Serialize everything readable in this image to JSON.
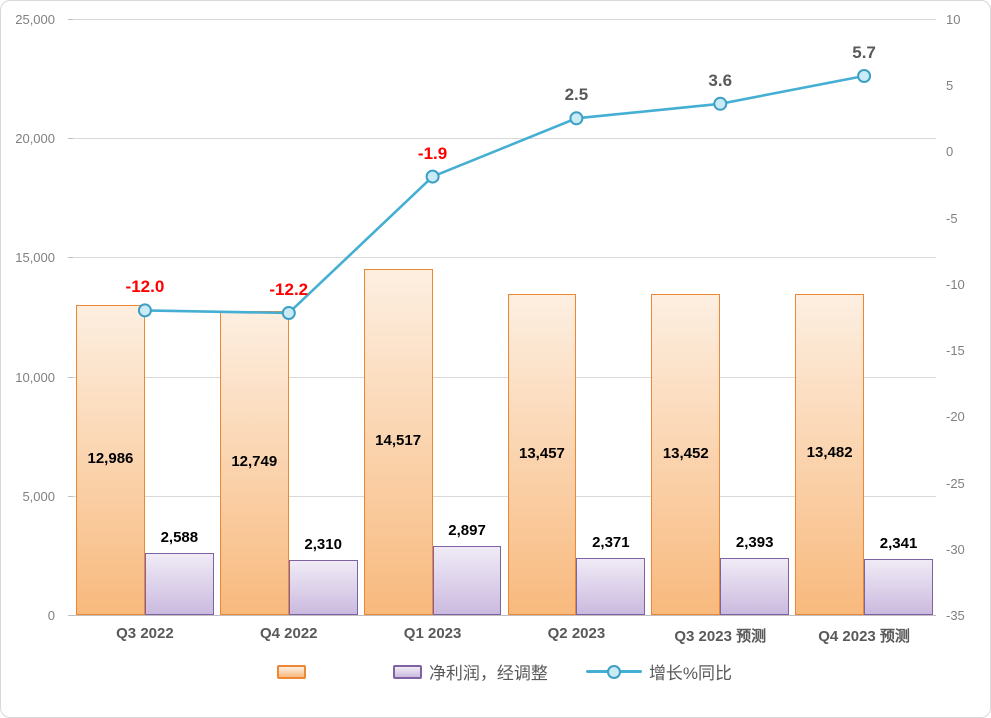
{
  "chart_data": {
    "type": "combo-bar-line",
    "categories": [
      "Q3 2022",
      "Q4 2022",
      "Q1 2023",
      "Q2 2023",
      "Q3 2023 预测",
      "Q4 2023 预测"
    ],
    "series": [
      {
        "name": "",
        "type": "bar",
        "axis": "left",
        "values": [
          12986,
          12749,
          14517,
          13457,
          13452,
          13482
        ],
        "labels": [
          "12,986",
          "12,749",
          "14,517",
          "13,457",
          "13,452",
          "13,482"
        ],
        "fill_top": "#FDEFE1",
        "fill_bottom": "#F8B97D",
        "border": "#ED8733"
      },
      {
        "name": "净利润，经调整",
        "type": "bar",
        "axis": "left",
        "values": [
          2588,
          2310,
          2897,
          2371,
          2393,
          2341
        ],
        "labels": [
          "2,588",
          "2,310",
          "2,897",
          "2,371",
          "2,393",
          "2,341"
        ],
        "fill_top": "#F0EBF6",
        "fill_bottom": "#CBBADF",
        "border": "#7E62A1"
      },
      {
        "name": "增长%同比",
        "type": "line",
        "axis": "right",
        "values": [
          -12.0,
          -12.2,
          -1.9,
          2.5,
          3.6,
          5.7
        ],
        "labels": [
          "-12.0",
          "-12.2",
          "-1.9",
          "2.5",
          "3.6",
          "5.7"
        ],
        "color": "#45AFD3",
        "marker_fill": "#C9EBF5",
        "marker_border": "#3E9FC4",
        "label_color_positive": "#595959",
        "label_color_negative": "#FF0000"
      }
    ],
    "left_axis": {
      "min": 0,
      "max": 25000,
      "step": 5000,
      "ticks": [
        {
          "value": 25000,
          "label": "25,000"
        },
        {
          "value": 20000,
          "label": "20,000"
        },
        {
          "value": 15000,
          "label": "15,000"
        },
        {
          "value": 10000,
          "label": "10,000"
        },
        {
          "value": 5000,
          "label": "5,000"
        },
        {
          "value": 0,
          "label": "0"
        }
      ]
    },
    "right_axis": {
      "min": -35,
      "max": 10,
      "step": 5,
      "ticks": [
        {
          "value": 10,
          "label": "10"
        },
        {
          "value": 5,
          "label": "5"
        },
        {
          "value": 0,
          "label": "0"
        },
        {
          "value": -5,
          "label": "-5"
        },
        {
          "value": -10,
          "label": "-10"
        },
        {
          "value": -15,
          "label": "-15"
        },
        {
          "value": -20,
          "label": "-20"
        },
        {
          "value": -25,
          "label": "-25"
        },
        {
          "value": -30,
          "label": "-30"
        },
        {
          "value": -35,
          "label": "-35"
        }
      ]
    },
    "grid": "horizontal",
    "legend_position": "bottom"
  },
  "colors": {
    "gridline": "#D9D9D9",
    "axis_base_line": "#BFBFBF",
    "tick_label": "#808080",
    "category_label": "#595959",
    "bar_value_label": "#000000",
    "frame_border": "#D9D9D9",
    "background": "#FFFFFF"
  }
}
